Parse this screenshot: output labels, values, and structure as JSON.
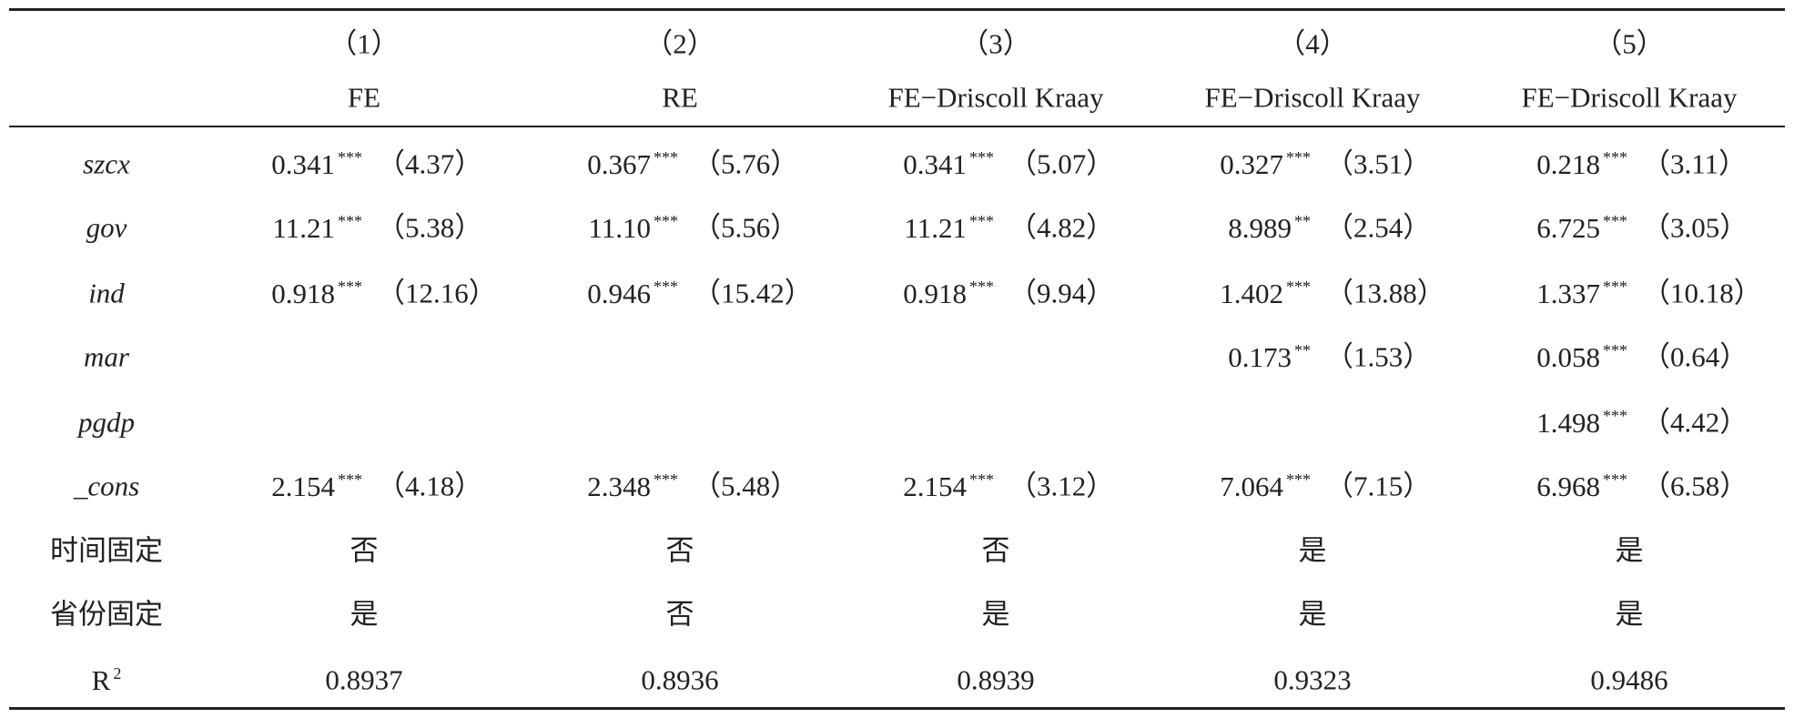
{
  "table": {
    "columns": [
      {
        "num": "（1）",
        "model": "FE"
      },
      {
        "num": "（2）",
        "model": "RE"
      },
      {
        "num": "（3）",
        "model": "FE−Driscoll Kraay"
      },
      {
        "num": "（4）",
        "model": "FE−Driscoll Kraay"
      },
      {
        "num": "（5）",
        "model": "FE−Driscoll Kraay"
      }
    ],
    "rows": [
      {
        "label": "szcx",
        "italic": true,
        "cells": [
          {
            "coef": "0.341",
            "stars": "***",
            "t": "（4.37）"
          },
          {
            "coef": "0.367",
            "stars": "***",
            "t": "（5.76）"
          },
          {
            "coef": "0.341",
            "stars": "***",
            "t": "（5.07）"
          },
          {
            "coef": "0.327",
            "stars": "***",
            "t": "（3.51）"
          },
          {
            "coef": "0.218",
            "stars": "***",
            "t": "（3.11）"
          }
        ]
      },
      {
        "label": "gov",
        "italic": true,
        "cells": [
          {
            "coef": "11.21",
            "stars": "***",
            "t": "（5.38）"
          },
          {
            "coef": "11.10",
            "stars": "***",
            "t": "（5.56）"
          },
          {
            "coef": "11.21",
            "stars": "***",
            "t": "（4.82）"
          },
          {
            "coef": "8.989",
            "stars": "**",
            "t": "（2.54）"
          },
          {
            "coef": "6.725",
            "stars": "***",
            "t": "（3.05）"
          }
        ]
      },
      {
        "label": "ind",
        "italic": true,
        "cells": [
          {
            "coef": "0.918",
            "stars": "***",
            "t": "（12.16）"
          },
          {
            "coef": "0.946",
            "stars": "***",
            "t": "（15.42）"
          },
          {
            "coef": "0.918",
            "stars": "***",
            "t": "（9.94）"
          },
          {
            "coef": "1.402",
            "stars": "***",
            "t": "（13.88）"
          },
          {
            "coef": "1.337",
            "stars": "***",
            "t": "（10.18）"
          }
        ]
      },
      {
        "label": "mar",
        "italic": true,
        "cells": [
          null,
          null,
          null,
          {
            "coef": "0.173",
            "stars": "**",
            "t": "（1.53）"
          },
          {
            "coef": "0.058",
            "stars": "***",
            "t": "（0.64）"
          }
        ]
      },
      {
        "label": "pgdp",
        "italic": true,
        "cells": [
          null,
          null,
          null,
          null,
          {
            "coef": "1.498",
            "stars": "***",
            "t": "（4.42）"
          }
        ]
      },
      {
        "label": "_cons",
        "italic": true,
        "cells": [
          {
            "coef": "2.154",
            "stars": "***",
            "t": "（4.18）"
          },
          {
            "coef": "2.348",
            "stars": "***",
            "t": "（5.48）"
          },
          {
            "coef": "2.154",
            "stars": "***",
            "t": "（3.12）"
          },
          {
            "coef": "7.064",
            "stars": "***",
            "t": "（7.15）"
          },
          {
            "coef": "6.968",
            "stars": "***",
            "t": "（6.58）"
          }
        ]
      },
      {
        "label": "时间固定",
        "cells": [
          "否",
          "否",
          "否",
          "是",
          "是"
        ]
      },
      {
        "label": "省份固定",
        "cells": [
          "是",
          "否",
          "是",
          "是",
          "是"
        ]
      },
      {
        "label": "R",
        "label_sup": "2",
        "cells": [
          "0.8937",
          "0.8936",
          "0.8939",
          "0.9323",
          "0.9486"
        ]
      }
    ]
  }
}
